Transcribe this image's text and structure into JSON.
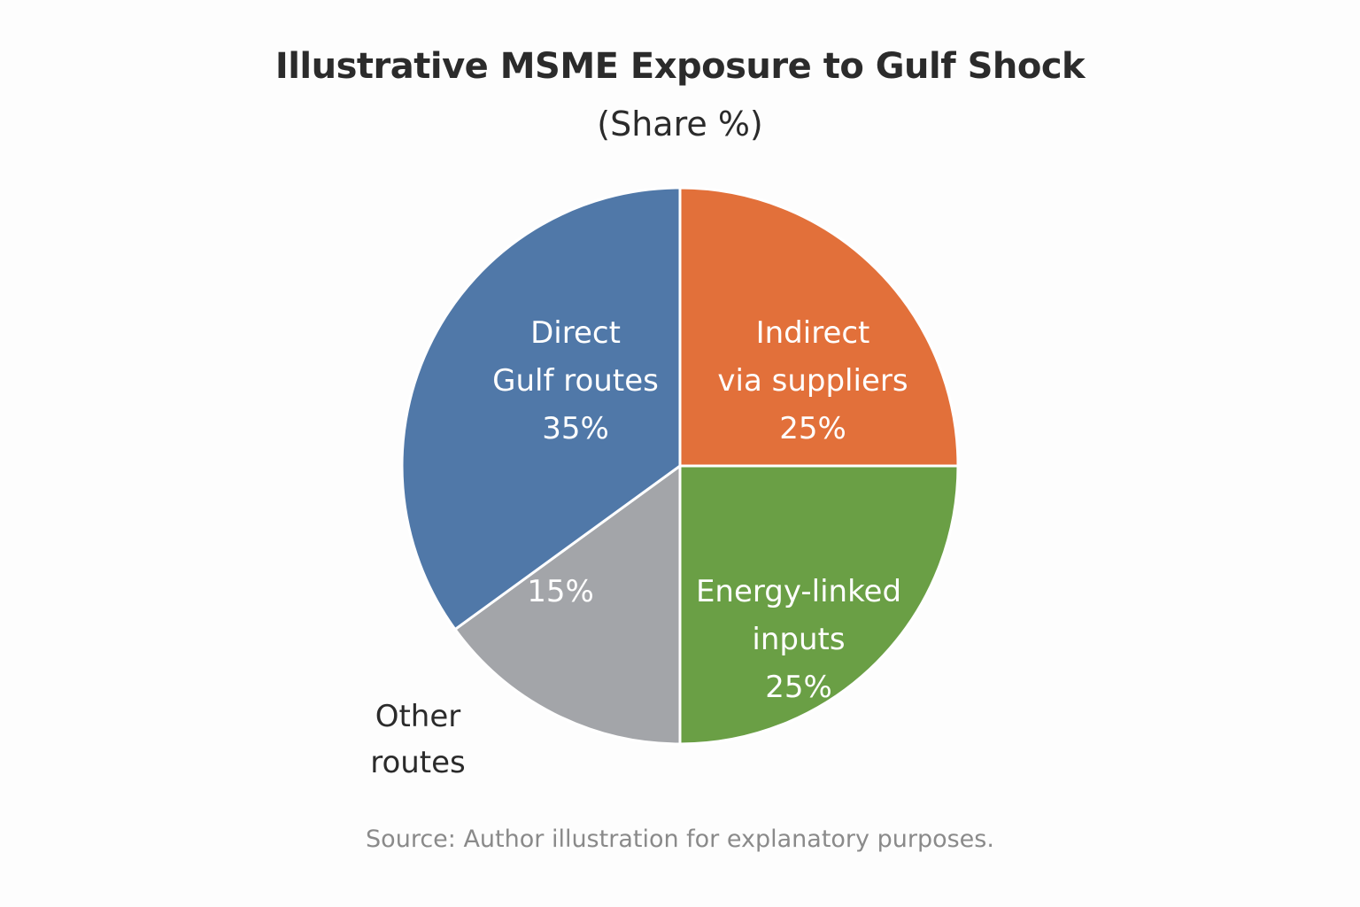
{
  "chart_data": {
    "type": "pie",
    "title": "Illustrative MSME Exposure to Gulf Shock",
    "subtitle": "(Share %)",
    "source": "Source: Author illustration for explanatory purposes.",
    "slices": [
      {
        "label": [
          "Indirect",
          "via suppliers"
        ],
        "value": 25,
        "value_label": "25%",
        "color": "#e2703a"
      },
      {
        "label": [
          "Energy-linked",
          "inputs"
        ],
        "value": 25,
        "value_label": "25%",
        "color": "#6a9f45"
      },
      {
        "label": [
          "Other",
          "routes"
        ],
        "value": 15,
        "value_label": "15%",
        "color": "#a3a5a9"
      },
      {
        "label": [
          "Direct",
          "Gulf routes"
        ],
        "value": 35,
        "value_label": "35%",
        "color": "#5078a8"
      }
    ]
  }
}
